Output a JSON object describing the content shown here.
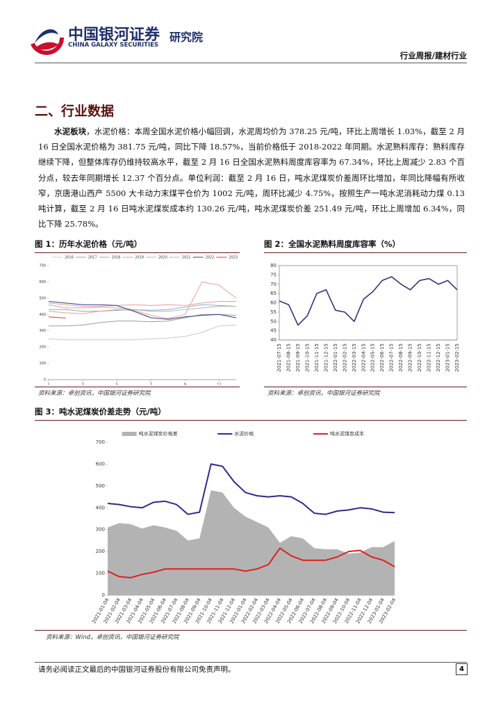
{
  "header": {
    "company": "中国银河证券",
    "company_en": "CHINA GALAXY SECURITIES",
    "institute": "研究院",
    "report_type": "行业周报/建材行业"
  },
  "section_title": "二、行业数据",
  "paragraph": {
    "lead": "水泥板块",
    "text": "，水泥价格：本周全国水泥价格小幅回调，水泥周均价为 378.25 元/吨，环比上周增长 1.03%，截至 2 月 16 日全国水泥价格为 381.75 元/吨，同比下降 18.57%，当前价格低于 2018-2022 年同期。水泥熟料库存：熟料库存继续下降，但整体库存仍维持较高水平，截至 2 月 16 日全国水泥熟料周度库容率为 67.34%，环比上周减少 2.83 个百分点，较去年同期增长 12.37 个百分点。单位利润：截至 2 月 16 日，吨水泥煤炭价差周环比增加，年同比降幅有所收窄，京唐港山西产 5500 大卡动力末煤平仓价为 1002 元/吨，周环比减少 4.75%，按照生产一吨水泥消耗动力煤 0.13 吨计算，截至 2 月 16 日吨水泥煤炭成本约 130.26 元/吨，吨水泥煤炭价差 251.49 元/吨，环比上周增加 6.34%，同比下降 25.78%。"
  },
  "figures": [
    {
      "title": "图 1：历年水泥价格（元/吨）",
      "source": "资料来源：卓创资讯，中国银河证券研究院",
      "chart_data": {
        "type": "line",
        "x": [
          1,
          2,
          3,
          4,
          5,
          6,
          7,
          8,
          9,
          10,
          11,
          12
        ],
        "xlim": [
          1,
          12
        ],
        "xticks": [
          1,
          3,
          5,
          7,
          9,
          11
        ],
        "ylim": [
          0,
          700
        ],
        "yticks": [
          0,
          100,
          200,
          300,
          400,
          500,
          600,
          700
        ],
        "grid": false,
        "legend": "top",
        "series": [
          {
            "name": "2016",
            "color": "#c9c9c9",
            "values": [
              250,
              245,
              245,
              245,
              245,
              245,
              250,
              255,
              265,
              290,
              330,
              335
            ]
          },
          {
            "name": "2017",
            "color": "#9a9a9a",
            "values": [
              330,
              330,
              335,
              350,
              360,
              360,
              355,
              360,
              380,
              400,
              400,
              395
            ]
          },
          {
            "name": "2018",
            "color": "#8fa8c6",
            "values": [
              430,
              430,
              420,
              420,
              425,
              430,
              425,
              430,
              445,
              460,
              455,
              450
            ]
          },
          {
            "name": "2019",
            "color": "#e49a9a",
            "values": [
              470,
              460,
              450,
              450,
              455,
              460,
              455,
              460,
              455,
              470,
              480,
              480
            ]
          },
          {
            "name": "2020",
            "color": "#b4b4b4",
            "values": [
              460,
              440,
              440,
              445,
              440,
              430,
              420,
              420,
              430,
              440,
              450,
              450
            ]
          },
          {
            "name": "2021",
            "color": "#e6a08e",
            "values": [
              420,
              410,
              405,
              420,
              430,
              425,
              395,
              375,
              400,
              600,
              580,
              500
            ]
          },
          {
            "name": "2022",
            "color": "#2e3a87",
            "values": [
              480,
              470,
              460,
              460,
              455,
              420,
              380,
              370,
              385,
              395,
              400,
              380
            ]
          },
          {
            "name": "2023",
            "color": "#e03030",
            "values": [
              385,
              378,
              null,
              null,
              null,
              null,
              null,
              null,
              null,
              null,
              null,
              null
            ]
          }
        ]
      }
    },
    {
      "title": "图 2：全国水泥熟料周度库容率（%）",
      "source": "资料来源：卓创资讯，中国银河证券研究院",
      "chart_data": {
        "type": "line",
        "categories": [
          "2021-07-15",
          "2021-08-15",
          "2021-09-15",
          "2021-10-15",
          "2021-11-15",
          "2021-12-15",
          "2022-01-15",
          "2022-02-15",
          "2022-03-15",
          "2022-04-15",
          "2022-05-15",
          "2022-06-15",
          "2022-07-15",
          "2022-08-15",
          "2022-09-15",
          "2022-10-15",
          "2022-11-15",
          "2022-12-15",
          "2023-01-15",
          "2023-02-15"
        ],
        "ylim": [
          40,
          80
        ],
        "yticks": [
          40,
          45,
          50,
          55,
          60,
          65,
          70,
          75,
          80
        ],
        "grid": false,
        "frame": true,
        "series": [
          {
            "color": "#3a2d7a",
            "values": [
              61,
              59,
              48,
              53,
              65,
              67,
              56,
              55,
              50,
              62,
              66,
              72,
              74,
              70,
              67,
              72,
              73,
              70,
              72,
              67
            ]
          }
        ]
      }
    },
    {
      "title": "图 3：吨水泥煤炭价差走势（元/吨）",
      "source": "资料来源：Wind，卓创资讯，中国银河证券研究院",
      "chart_data": {
        "type": "line",
        "categories": [
          "2021-01-04",
          "2021-02-04",
          "2021-03-04",
          "2021-04-04",
          "2021-05-04",
          "2021-06-04",
          "2021-07-04",
          "2021-08-04",
          "2021-09-04",
          "2021-10-04",
          "2021-11-04",
          "2021-12-04",
          "2022-01-04",
          "2022-02-04",
          "2022-03-04",
          "2022-04-04",
          "2022-05-04",
          "2022-06-04",
          "2022-07-04",
          "2022-08-04",
          "2022-09-04",
          "2022-10-04",
          "2022-11-04",
          "2022-12-04",
          "2023-01-04",
          "2023-02-04"
        ],
        "ylim": [
          0,
          700
        ],
        "yticks": [
          0,
          100,
          200,
          300,
          400,
          500,
          600,
          700
        ],
        "grid": false,
        "legend": "top",
        "series": [
          {
            "name": "吨水泥煤炭价格差",
            "color": "#b3b3b3",
            "style": "area",
            "values": [
              310,
              330,
              325,
              305,
              320,
              310,
              295,
              250,
              260,
              480,
              470,
              400,
              360,
              335,
              310,
              240,
              270,
              260,
              215,
              210,
              210,
              190,
              195,
              220,
              220,
              248
            ]
          },
          {
            "name": "水泥价格",
            "color": "#2e2a8c",
            "values": [
              420,
              415,
              405,
              400,
              425,
              430,
              415,
              370,
              380,
              600,
              590,
              520,
              470,
              455,
              450,
              455,
              450,
              420,
              375,
              370,
              385,
              390,
              400,
              395,
              380,
              378
            ]
          },
          {
            "name": "吨水泥煤炭成本",
            "color": "#e02020",
            "values": [
              110,
              85,
              80,
              95,
              105,
              120,
              120,
              120,
              120,
              120,
              120,
              120,
              110,
              120,
              140,
              215,
              180,
              160,
              160,
              160,
              175,
              200,
              205,
              175,
              160,
              130
            ]
          }
        ]
      }
    }
  ],
  "footer": {
    "disclaimer": "请务必阅读正文最后的中国银河证券股份有限公司免责声明。",
    "page_number": "4"
  }
}
